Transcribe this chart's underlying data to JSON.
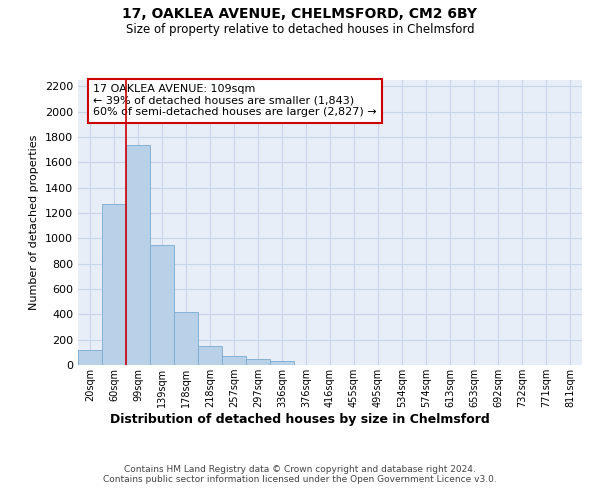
{
  "title": "17, OAKLEA AVENUE, CHELMSFORD, CM2 6BY",
  "subtitle": "Size of property relative to detached houses in Chelmsford",
  "xlabel": "Distribution of detached houses by size in Chelmsford",
  "ylabel": "Number of detached properties",
  "categories": [
    "20sqm",
    "60sqm",
    "99sqm",
    "139sqm",
    "178sqm",
    "218sqm",
    "257sqm",
    "297sqm",
    "336sqm",
    "376sqm",
    "416sqm",
    "455sqm",
    "495sqm",
    "534sqm",
    "574sqm",
    "613sqm",
    "653sqm",
    "692sqm",
    "732sqm",
    "771sqm",
    "811sqm"
  ],
  "values": [
    120,
    1270,
    1740,
    950,
    415,
    150,
    75,
    45,
    28,
    0,
    0,
    0,
    0,
    0,
    0,
    0,
    0,
    0,
    0,
    0,
    0
  ],
  "bar_color": "#b8d0e8",
  "bar_edge_color": "#7aaad0",
  "vline_color": "#cc0000",
  "annotation_text": "17 OAKLEA AVENUE: 109sqm\n← 39% of detached houses are smaller (1,843)\n60% of semi-detached houses are larger (2,827) →",
  "annotation_box_color": "#ffffff",
  "annotation_box_edge": "#cc0000",
  "ylim": [
    0,
    2250
  ],
  "yticks": [
    0,
    200,
    400,
    600,
    800,
    1000,
    1200,
    1400,
    1600,
    1800,
    2000,
    2200
  ],
  "grid_color": "#c8d4e8",
  "bg_color": "#e8eef8",
  "footer": "Contains HM Land Registry data © Crown copyright and database right 2024.\nContains public sector information licensed under the Open Government Licence v3.0."
}
